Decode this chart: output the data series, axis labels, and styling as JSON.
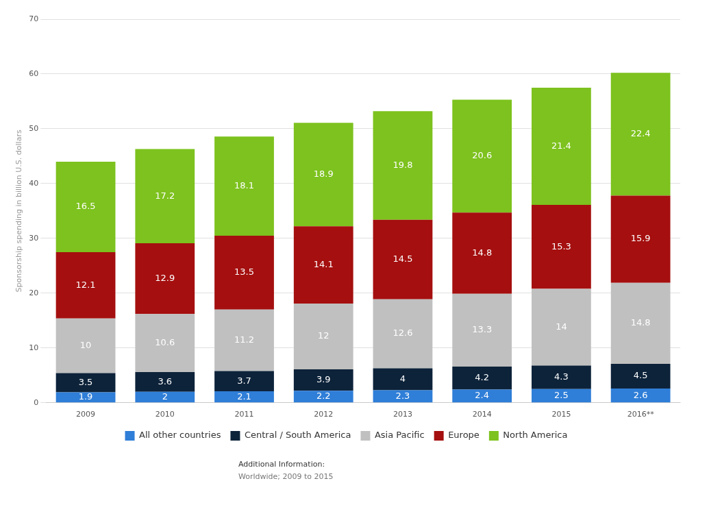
{
  "chart_data": {
    "type": "bar",
    "stacked": true,
    "categories": [
      "2009",
      "2010",
      "2011",
      "2012",
      "2013",
      "2014",
      "2015",
      "2016**"
    ],
    "ylabel": "Sponsorship spending in billion U.S. dollars",
    "ylim": [
      0,
      70
    ],
    "yticks": [
      0,
      10,
      20,
      30,
      40,
      50,
      60,
      70
    ],
    "grid": "y",
    "legend": "bottom",
    "data_labels": true,
    "series": [
      {
        "name": "All other countries",
        "color": "#2f7ed8",
        "values": [
          1.9,
          2,
          2.1,
          2.2,
          2.3,
          2.4,
          2.5,
          2.6
        ]
      },
      {
        "name": "Central / South America",
        "color": "#0d233a",
        "values": [
          3.5,
          3.6,
          3.7,
          3.9,
          4,
          4.2,
          4.3,
          4.5
        ]
      },
      {
        "name": "Asia Pacific",
        "color": "#c0c0c0",
        "values": [
          10,
          10.6,
          11.2,
          12,
          12.6,
          13.3,
          14,
          14.8
        ]
      },
      {
        "name": "Europe",
        "color": "#a50f0f",
        "values": [
          12.1,
          12.9,
          13.5,
          14.1,
          14.5,
          14.8,
          15.3,
          15.9
        ]
      },
      {
        "name": "North America",
        "color": "#7dc21e",
        "values": [
          16.5,
          17.2,
          18.1,
          18.9,
          19.8,
          20.6,
          21.4,
          22.4
        ]
      }
    ],
    "annotations": [
      "Additional Information:",
      "Worldwide; 2009 to 2015"
    ]
  }
}
